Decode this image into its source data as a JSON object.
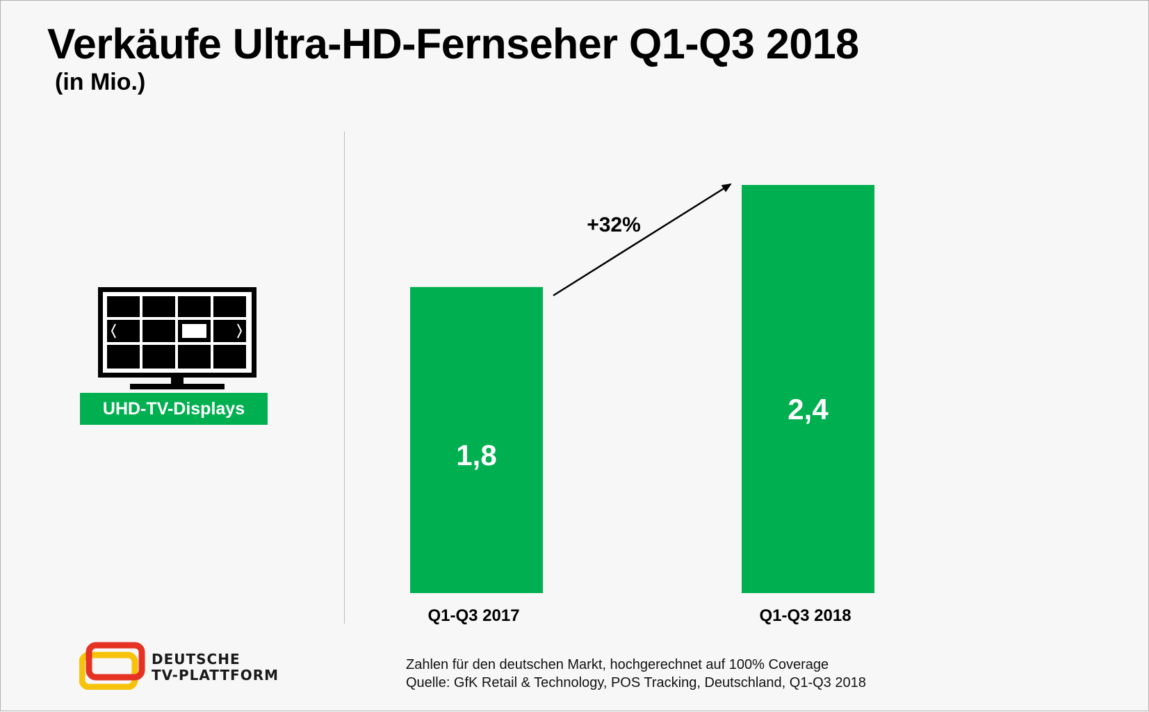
{
  "header": {
    "title": "Verkäufe Ultra-HD-Fernseher Q1-Q3 2018",
    "subtitle": "(in Mio.)"
  },
  "side": {
    "icon": "tv-grid-icon",
    "label": "UHD-TV-Displays"
  },
  "chart_data": {
    "type": "bar",
    "categories": [
      "Q1-Q3 2017",
      "Q1-Q3 2018"
    ],
    "values": [
      1.8,
      2.4
    ],
    "value_labels": [
      "1,8",
      "2,4"
    ],
    "growth_label": "+32%",
    "title": "Verkäufe Ultra-HD-Fernseher Q1-Q3 2018",
    "ylim": [
      0,
      2.4
    ],
    "bar_color": "#00b050",
    "grid": false,
    "legend": "none"
  },
  "footer": {
    "logo_line1": "DEUTSCHE",
    "logo_line2": "TV-PLATTFORM",
    "note_line1": "Zahlen für den deutschen Markt, hochgerechnet auf 100% Coverage",
    "note_line2": "Quelle: GfK Retail & Technology, POS Tracking, Deutschland, Q1-Q3 2018"
  },
  "colors": {
    "accent": "#00b050",
    "logo_red": "#e53222",
    "logo_yellow": "#f7c20a"
  }
}
